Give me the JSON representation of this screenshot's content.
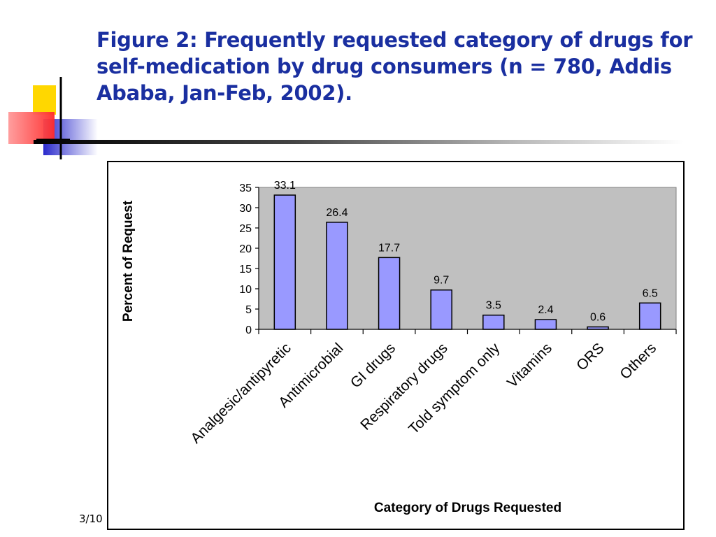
{
  "slide": {
    "title": "Figure 2: Frequently requested category of drugs for self-medication by drug consumers (n = 780, Addis Ababa, Jan-Feb, 2002).",
    "footer_date": "3/10"
  },
  "colors": {
    "title": "#1a2fa0",
    "plot_background": "#c0c0c0",
    "bar_fill": "#9999ff",
    "bar_stroke": "#000000"
  },
  "chart_data": {
    "type": "bar",
    "title": "",
    "xlabel": "Category of Drugs Requested",
    "ylabel": "Percent of Request",
    "categories": [
      "Analgesic/antipyretic",
      "Antimicrobial",
      "GI drugs",
      "Respiratory drugs",
      "Told symptom only",
      "Vitamins",
      "ORS",
      "Others"
    ],
    "values": [
      33.1,
      26.4,
      17.7,
      9.7,
      3.5,
      2.4,
      0.6,
      6.5
    ],
    "data_labels": [
      "33.1",
      "26.4",
      "17.7",
      "9.7",
      "3.5",
      "2.4",
      "0.6",
      "6.5"
    ],
    "ylim": [
      0,
      35
    ],
    "yticks": [
      "0",
      "5",
      "10",
      "15",
      "20",
      "25",
      "30",
      "35"
    ],
    "grid": false,
    "legend": "none"
  }
}
